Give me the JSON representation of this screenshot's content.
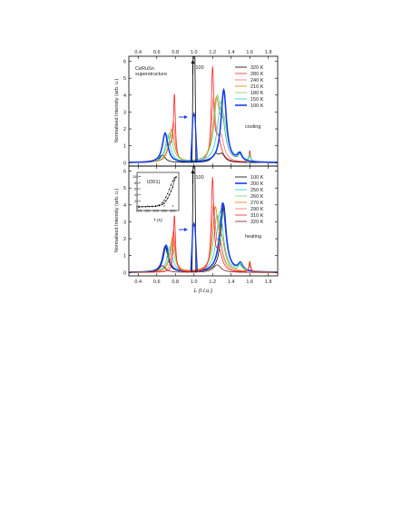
{
  "chart_data": [
    {
      "type": "line",
      "panel": "top",
      "xlim": [
        0.3,
        1.9
      ],
      "ylim": [
        -0.2,
        6.3
      ],
      "x_ticks": [
        "0.4",
        "0.6",
        "0.8",
        "1.0",
        "1.2",
        "1.4",
        "1.6",
        "1.8"
      ],
      "y_ticks": [
        "0",
        "1",
        "2",
        "3",
        "4",
        "5",
        "6"
      ],
      "ylabel": "Normalised Intensity (arb. u.)",
      "annotations": {
        "sample": "CeRuSn",
        "sample2": "superstructure",
        "mode": "cooling",
        "peak_label": "100"
      },
      "series": [
        {
          "name": "320 K",
          "color": "#000000",
          "width": 0.8,
          "shift": 0,
          "peaks": [
            [
              0.66,
              0.45,
              0.04
            ],
            [
              1.23,
              0.45,
              0.04
            ],
            [
              1.3,
              0.45,
              0.04
            ]
          ]
        },
        {
          "name": "280 K",
          "color": "#ff2222",
          "width": 0.8,
          "shift": 0,
          "peaks": [
            [
              0.79,
              3.75,
              0.012
            ],
            [
              0.74,
              0.9,
              0.04
            ],
            [
              1.2,
              5.3,
              0.016
            ],
            [
              1.26,
              1.3,
              0.04
            ],
            [
              1.6,
              0.7,
              0.01
            ]
          ]
        },
        {
          "name": "240 K",
          "color": "#ff6b6b",
          "width": 0.8,
          "shift": 0,
          "peaks": [
            [
              0.78,
              2.2,
              0.02
            ],
            [
              0.73,
              0.7,
              0.04
            ],
            [
              1.21,
              3.6,
              0.025
            ],
            [
              1.29,
              1.4,
              0.04
            ],
            [
              1.6,
              0.55,
              0.012
            ]
          ]
        },
        {
          "name": "210 K",
          "color": "#e07b00",
          "width": 0.8,
          "shift": 0,
          "peaks": [
            [
              0.76,
              1.95,
              0.035
            ],
            [
              1.24,
              3.45,
              0.04
            ],
            [
              1.31,
              1.8,
              0.04
            ],
            [
              1.5,
              0.4,
              0.025
            ],
            [
              1.6,
              0.45,
              0.012
            ]
          ]
        },
        {
          "name": "180 K",
          "color": "#66dd66",
          "width": 0.8,
          "shift": 0,
          "peaks": [
            [
              0.74,
              1.75,
              0.04
            ],
            [
              1.25,
              3.4,
              0.04
            ],
            [
              1.32,
              2.0,
              0.045
            ],
            [
              1.5,
              0.45,
              0.025
            ],
            [
              1.6,
              0.35,
              0.012
            ]
          ]
        },
        {
          "name": "150 K",
          "color": "#22cccc",
          "width": 0.8,
          "shift": 0,
          "peaks": [
            [
              0.72,
              1.6,
              0.035
            ],
            [
              1.29,
              3.6,
              0.045
            ],
            [
              1.5,
              0.45,
              0.025
            ],
            [
              1.6,
              0.3,
              0.012
            ]
          ]
        },
        {
          "name": "100 K",
          "color": "#1a3ee8",
          "width": 1.6,
          "shift": 0,
          "peaks": [
            [
              0.69,
              1.75,
              0.035
            ],
            [
              1.32,
              4.3,
              0.035
            ],
            [
              1.49,
              0.45,
              0.03
            ]
          ]
        }
      ]
    },
    {
      "type": "line",
      "panel": "bottom",
      "xlim": [
        0.3,
        1.9
      ],
      "ylim": [
        -0.2,
        6.3
      ],
      "x_ticks": [
        "0.4",
        "0.6",
        "0.8",
        "1.0",
        "1.2",
        "1.4",
        "1.6",
        "1.8"
      ],
      "y_ticks": [
        "0",
        "1",
        "2",
        "3",
        "4",
        "5",
        "6"
      ],
      "xlabel": "L (r.l.u.)",
      "ylabel": "Normalised Intensity (arb. u.)",
      "annotations": {
        "mode": "heating",
        "peak_label": "100"
      },
      "series": [
        {
          "name": "100 K",
          "color": "#000000",
          "width": 0.8,
          "shift": 0,
          "peaks": [
            [
              0.69,
              1.55,
              0.035
            ],
            [
              1.32,
              4.0,
              0.035
            ],
            [
              1.49,
              0.4,
              0.03
            ]
          ]
        },
        {
          "name": "200 K",
          "color": "#1a3ee8",
          "width": 1.6,
          "shift": 0,
          "peaks": [
            [
              0.7,
              1.6,
              0.035
            ],
            [
              1.31,
              4.1,
              0.04
            ],
            [
              1.5,
              0.45,
              0.03
            ]
          ]
        },
        {
          "name": "250 K",
          "color": "#22cccc",
          "width": 0.8,
          "shift": 0,
          "peaks": [
            [
              0.74,
              1.5,
              0.035
            ],
            [
              1.28,
              3.6,
              0.045
            ],
            [
              1.5,
              0.45,
              0.025
            ],
            [
              1.6,
              0.3,
              0.012
            ]
          ]
        },
        {
          "name": "260 K",
          "color": "#66dd66",
          "width": 0.8,
          "shift": 0,
          "peaks": [
            [
              0.76,
              1.7,
              0.035
            ],
            [
              1.25,
              3.4,
              0.045
            ],
            [
              1.5,
              0.4,
              0.025
            ],
            [
              1.6,
              0.35,
              0.012
            ]
          ]
        },
        {
          "name": "270 K",
          "color": "#e07b00",
          "width": 0.8,
          "shift": 0,
          "peaks": [
            [
              0.77,
              2.1,
              0.03
            ],
            [
              1.23,
              3.5,
              0.035
            ],
            [
              1.3,
              1.5,
              0.04
            ],
            [
              1.6,
              0.45,
              0.012
            ]
          ]
        },
        {
          "name": "290 K",
          "color": "#ff6b6b",
          "width": 0.8,
          "shift": 0,
          "peaks": [
            [
              0.78,
              2.5,
              0.02
            ],
            [
              1.21,
              3.7,
              0.025
            ],
            [
              1.28,
              1.4,
              0.04
            ],
            [
              1.6,
              0.55,
              0.012
            ]
          ]
        },
        {
          "name": "310 K",
          "color": "#ff2222",
          "width": 0.8,
          "shift": 0,
          "peaks": [
            [
              0.79,
              3.4,
              0.013
            ],
            [
              1.2,
              5.35,
              0.016
            ],
            [
              1.27,
              1.2,
              0.04
            ],
            [
              1.6,
              0.65,
              0.01
            ]
          ]
        },
        {
          "name": "320 K",
          "color": "#7a1a1a",
          "width": 0.8,
          "shift": 0,
          "peaks": [
            [
              0.66,
              0.4,
              0.04
            ],
            [
              1.25,
              0.45,
              0.05
            ]
          ]
        }
      ],
      "inset": {
        "label": "I(001)",
        "xlabel": "T (K)",
        "xlim": [
          100,
          325
        ],
        "ylim": [
          0,
          105
        ],
        "x_ticks": [
          "100",
          "150",
          "200",
          "250",
          "300"
        ],
        "y_ticks": [
          "0",
          "20",
          "40",
          "60",
          "80",
          "100"
        ],
        "cooling": [
          [
            100,
            0
          ],
          [
            120,
            0.5
          ],
          [
            140,
            0.5
          ],
          [
            160,
            1
          ],
          [
            180,
            1.5
          ],
          [
            200,
            2
          ],
          [
            220,
            4
          ],
          [
            240,
            8
          ],
          [
            250,
            12
          ],
          [
            260,
            20
          ],
          [
            270,
            28
          ],
          [
            280,
            40
          ],
          [
            290,
            52
          ],
          [
            300,
            65
          ],
          [
            310,
            88
          ],
          [
            320,
            98
          ]
        ],
        "heating": [
          [
            100,
            0
          ],
          [
            120,
            0.5
          ],
          [
            140,
            0.5
          ],
          [
            160,
            1
          ],
          [
            180,
            1.5
          ],
          [
            200,
            2.5
          ],
          [
            220,
            6
          ],
          [
            240,
            14
          ],
          [
            250,
            22
          ],
          [
            260,
            32
          ],
          [
            270,
            44
          ],
          [
            280,
            58
          ],
          [
            290,
            72
          ],
          [
            300,
            85
          ],
          [
            310,
            96
          ],
          [
            320,
            99
          ]
        ]
      }
    }
  ]
}
